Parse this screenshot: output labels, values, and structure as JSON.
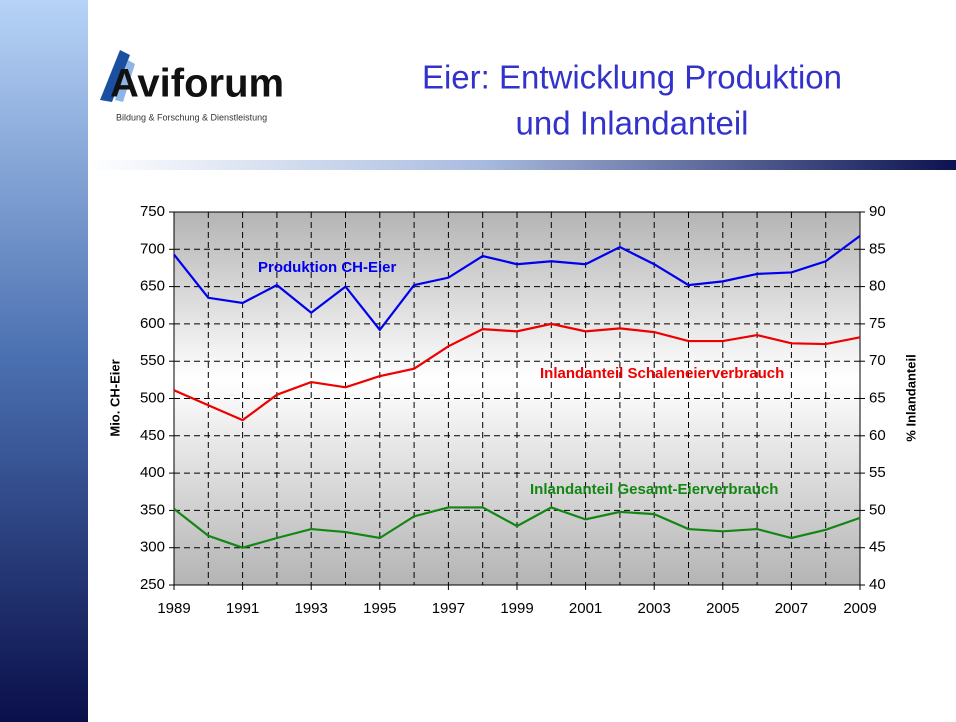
{
  "logo": {
    "name": "Aviforum",
    "tagline": "Bildung & Forschung & Dienstleistung"
  },
  "chart_data": {
    "type": "line",
    "title_lines": [
      "Eier: Entwicklung Produktion",
      "und Inlandanteil"
    ],
    "y_label": "Mio. CH-Eier",
    "y2_label": "% Inlandanteil",
    "x": [
      1989,
      1990,
      1991,
      1992,
      1993,
      1994,
      1995,
      1996,
      1997,
      1998,
      1999,
      2000,
      2001,
      2002,
      2003,
      2004,
      2005,
      2006,
      2007,
      2008,
      2009
    ],
    "xlim": [
      1989,
      2009
    ],
    "xticks": [
      1989,
      1991,
      1993,
      1995,
      1997,
      1999,
      2001,
      2003,
      2005,
      2007,
      2009
    ],
    "ylim": [
      250,
      750
    ],
    "yticks": [
      250,
      300,
      350,
      400,
      450,
      500,
      550,
      600,
      650,
      700,
      750
    ],
    "y2lim": [
      40,
      90
    ],
    "y2ticks": [
      40,
      45,
      50,
      55,
      60,
      65,
      70,
      75,
      80,
      85,
      90
    ],
    "grid": true,
    "series": [
      {
        "name": "Produktion CH-Eier",
        "color": "#0000ee",
        "axis": "y",
        "values": [
          693,
          635,
          628,
          652,
          615,
          650,
          592,
          652,
          662,
          691,
          680,
          684,
          680,
          703,
          680,
          652,
          657,
          667,
          669,
          684,
          718
        ]
      },
      {
        "name": "Inlandanteil Schaleneierverbrauch",
        "color": "#ee0000",
        "axis": "y2",
        "values": [
          66.1,
          64.1,
          62.1,
          65.5,
          67.2,
          66.5,
          68,
          69,
          72,
          74.3,
          74,
          75,
          74,
          74.4,
          73.9,
          72.7,
          72.7,
          73.5,
          72.4,
          72.3,
          73.2
        ]
      },
      {
        "name": "Inlandanteil Gesamt-Eierverbrauch",
        "color": "#138613",
        "axis": "y2",
        "values": [
          50.2,
          46.6,
          45,
          46.3,
          47.5,
          47.1,
          46.3,
          49.2,
          50.4,
          50.4,
          47.9,
          50.4,
          48.8,
          49.8,
          49.5,
          47.5,
          47.2,
          47.5,
          46.3,
          47.4,
          49
        ]
      }
    ]
  }
}
